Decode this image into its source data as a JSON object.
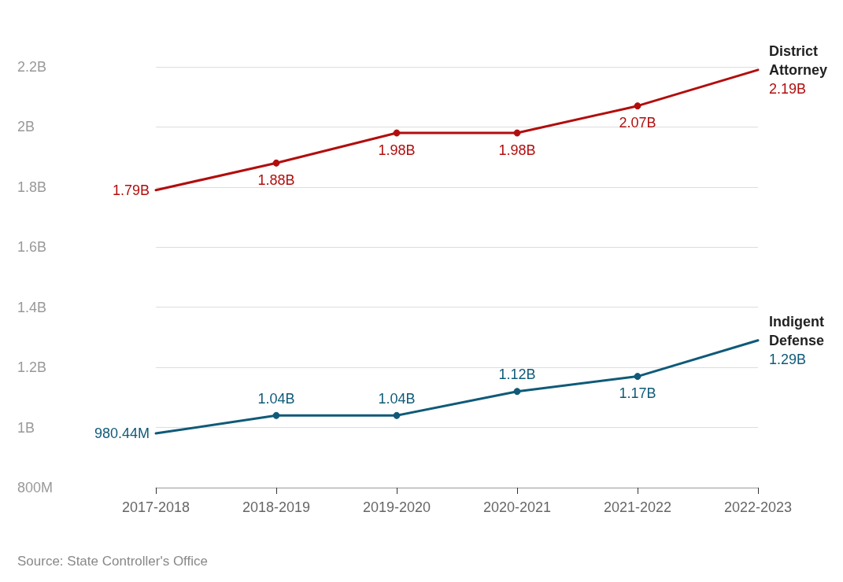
{
  "chart_data": {
    "type": "line",
    "categories": [
      "2017-2018",
      "2018-2019",
      "2019-2020",
      "2020-2021",
      "2021-2022",
      "2022-2023"
    ],
    "series": [
      {
        "name": "District Attorney",
        "color": "#b20d0d",
        "values": [
          1790000000,
          1880000000,
          1980000000,
          1980000000,
          2070000000,
          2190000000
        ],
        "value_labels": [
          "1.79B",
          "1.88B",
          "1.98B",
          "1.98B",
          "2.07B",
          "2.19B"
        ]
      },
      {
        "name": "Indigent Defense",
        "color": "#0f5a78",
        "values": [
          980440000,
          1040000000,
          1040000000,
          1120000000,
          1170000000,
          1290000000
        ],
        "value_labels": [
          "980.44M",
          "1.04B",
          "1.04B",
          "1.12B",
          "1.17B",
          "1.29B"
        ]
      }
    ],
    "ylim": [
      800000000,
      2200000000
    ],
    "yticks": [
      {
        "value": 800000000,
        "label": "800M"
      },
      {
        "value": 1000000000,
        "label": "1B"
      },
      {
        "value": 1200000000,
        "label": "1.2B"
      },
      {
        "value": 1400000000,
        "label": "1.4B"
      },
      {
        "value": 1600000000,
        "label": "1.6B"
      },
      {
        "value": 1800000000,
        "label": "1.8B"
      },
      {
        "value": 2000000000,
        "label": "2B"
      },
      {
        "value": 2200000000,
        "label": "2.2B"
      }
    ],
    "grid": "y",
    "marker": "circle",
    "line_style": "solid",
    "legend": false,
    "annotations": [
      "Source: State Controller's Office"
    ]
  }
}
